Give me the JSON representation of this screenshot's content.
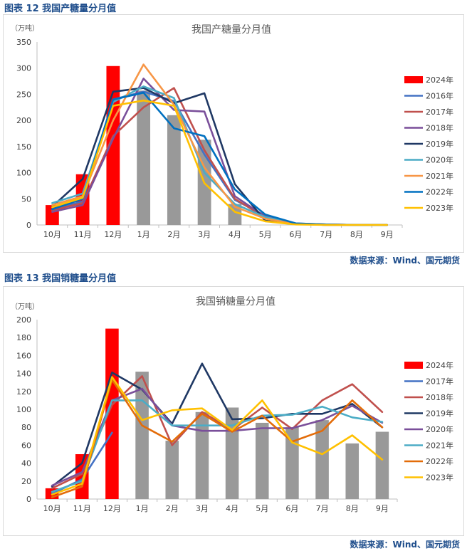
{
  "chart1": {
    "caption": "图表 12  我国产糖量分月值",
    "source": "数据来源：Wind、国元期货",
    "chart_data": {
      "type": "bar",
      "title": "我国产糖量分月值",
      "ylabel": "（万吨）",
      "ylim": [
        0,
        350
      ],
      "yticks": [
        0,
        50,
        100,
        150,
        200,
        250,
        300,
        350
      ],
      "categories": [
        "10月",
        "11月",
        "12月",
        "1月",
        "2月",
        "3月",
        "4月",
        "5月",
        "6月",
        "7月",
        "8月",
        "9月"
      ],
      "legend_position": "right",
      "bars": {
        "name": "2024年",
        "values": [
          38,
          97,
          304,
          257,
          210,
          163,
          40,
          null,
          null,
          null,
          null,
          null
        ],
        "colors": [
          "#ff0000",
          "#ff0000",
          "#ff0000",
          "#999999",
          "#999999",
          "#999999",
          "#999999",
          null,
          null,
          null,
          null,
          null
        ]
      },
      "series": [
        {
          "name": "2016年",
          "color": "#4472c4",
          "values": [
            30,
            45,
            240,
            255,
            237,
            135,
            48,
            18,
            3,
            1,
            0,
            0
          ]
        },
        {
          "name": "2017年",
          "color": "#c0504d",
          "values": [
            28,
            42,
            170,
            225,
            262,
            143,
            50,
            14,
            2,
            1,
            0,
            0
          ]
        },
        {
          "name": "2018年",
          "color": "#7a4f9a",
          "values": [
            25,
            38,
            165,
            280,
            220,
            217,
            55,
            16,
            2,
            1,
            0,
            0
          ]
        },
        {
          "name": "2019年",
          "color": "#1f3864",
          "values": [
            35,
            88,
            255,
            262,
            233,
            252,
            78,
            8,
            2,
            0,
            0,
            0
          ]
        },
        {
          "name": "2020年",
          "color": "#4bacc6",
          "values": [
            42,
            60,
            235,
            265,
            243,
            100,
            40,
            15,
            2,
            0,
            0,
            0
          ]
        },
        {
          "name": "2021年",
          "color": "#f79646",
          "values": [
            38,
            55,
            200,
            307,
            230,
            110,
            35,
            12,
            2,
            0,
            0,
            0
          ]
        },
        {
          "name": "2022年",
          "color": "#0070c0",
          "values": [
            30,
            50,
            240,
            253,
            185,
            170,
            68,
            20,
            3,
            1,
            0,
            0
          ]
        },
        {
          "name": "2023年",
          "color": "#ffc000",
          "values": [
            34,
            52,
            228,
            238,
            228,
            80,
            25,
            7,
            1,
            0,
            0,
            0
          ]
        }
      ]
    }
  },
  "chart2": {
    "caption": "图表 13  我国销糖量分月值",
    "source": "数据来源：Wind、国元期货",
    "chart_data": {
      "type": "bar",
      "title": "我国销糖量分月值",
      "ylabel": "（万吨）",
      "ylim": [
        0,
        200
      ],
      "yticks": [
        0,
        20,
        40,
        60,
        80,
        100,
        120,
        140,
        160,
        180,
        200
      ],
      "categories": [
        "10月",
        "11月",
        "12月",
        "1月",
        "2月",
        "3月",
        "4月",
        "5月",
        "6月",
        "7月",
        "8月",
        "9月"
      ],
      "legend_position": "right",
      "bars": {
        "name": "2024年",
        "values": [
          12,
          50,
          190,
          142,
          65,
          97,
          102,
          85,
          80,
          88,
          62,
          75
        ],
        "colors": [
          "#ff0000",
          "#ff0000",
          "#ff0000",
          "#999999",
          "#999999",
          "#999999",
          "#999999",
          "#999999",
          "#999999",
          "#999999",
          "#999999",
          "#999999"
        ]
      },
      "series": [
        {
          "name": "2017年",
          "color": "#4472c4",
          "values": [
            6,
            22,
            74,
            null,
            null,
            null,
            null,
            null,
            null,
            null,
            null,
            null
          ]
        },
        {
          "name": "2018年",
          "color": "#c0504d",
          "values": [
            12,
            28,
            105,
            137,
            60,
            97,
            77,
            102,
            78,
            110,
            128,
            97
          ]
        },
        {
          "name": "2019年",
          "color": "#1f3864",
          "values": [
            14,
            40,
            141,
            122,
            84,
            151,
            89,
            90,
            95,
            95,
            106,
            80
          ]
        },
        {
          "name": "2020年",
          "color": "#7a4f9a",
          "values": [
            15,
            30,
            110,
            123,
            82,
            76,
            76,
            79,
            79,
            88,
            104,
            85
          ]
        },
        {
          "name": "2021年",
          "color": "#4bacc6",
          "values": [
            8,
            20,
            110,
            110,
            82,
            82,
            82,
            93,
            94,
            103,
            91,
            86
          ]
        },
        {
          "name": "2022年",
          "color": "#e36c09",
          "values": [
            2,
            14,
            133,
            82,
            64,
            95,
            75,
            93,
            64,
            76,
            110,
            80
          ]
        },
        {
          "name": "2023年",
          "color": "#ffc000",
          "values": [
            5,
            17,
            136,
            88,
            99,
            101,
            77,
            110,
            63,
            50,
            71,
            44
          ]
        }
      ]
    }
  }
}
